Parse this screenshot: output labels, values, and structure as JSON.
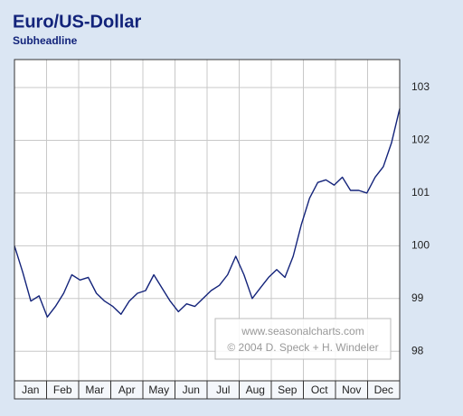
{
  "chart_data": {
    "type": "line",
    "title": "Euro/US-Dollar",
    "subtitle": "Subheadline",
    "categories": [
      "Jan",
      null,
      null,
      null,
      "Feb",
      null,
      null,
      null,
      "Mar",
      null,
      null,
      null,
      "Apr",
      null,
      null,
      null,
      "May",
      null,
      null,
      null,
      "Jun",
      null,
      null,
      null,
      "Jul",
      null,
      null,
      null,
      "Aug",
      null,
      null,
      null,
      "Sep",
      null,
      null,
      null,
      "Oct",
      null,
      null,
      null,
      "Nov",
      null,
      null,
      null,
      "Dec",
      null,
      null,
      null
    ],
    "series": [
      {
        "name": "Euro/US-Dollar",
        "color": "#13237a",
        "values": [
          100.0,
          99.5,
          98.95,
          99.05,
          98.65,
          98.85,
          99.1,
          99.45,
          99.35,
          99.4,
          99.1,
          98.95,
          98.85,
          98.7,
          98.95,
          99.1,
          99.15,
          99.45,
          99.2,
          98.95,
          98.75,
          98.9,
          98.85,
          99.0,
          99.15,
          99.25,
          99.45,
          99.8,
          99.45,
          99.0,
          99.2,
          99.4,
          99.55,
          99.4,
          99.8,
          100.4,
          100.9,
          101.2,
          101.25,
          101.15,
          101.3,
          101.05,
          101.05,
          101.0,
          101.3,
          101.5,
          101.95,
          102.6
        ]
      }
    ],
    "ylim": [
      97.44,
      103.53
    ],
    "yticks": [
      98,
      99,
      100,
      101,
      102,
      103
    ],
    "grid": true,
    "annotations": [
      "www.seasonalcharts.com",
      "© 2004 D. Speck + H. Windeler"
    ]
  }
}
